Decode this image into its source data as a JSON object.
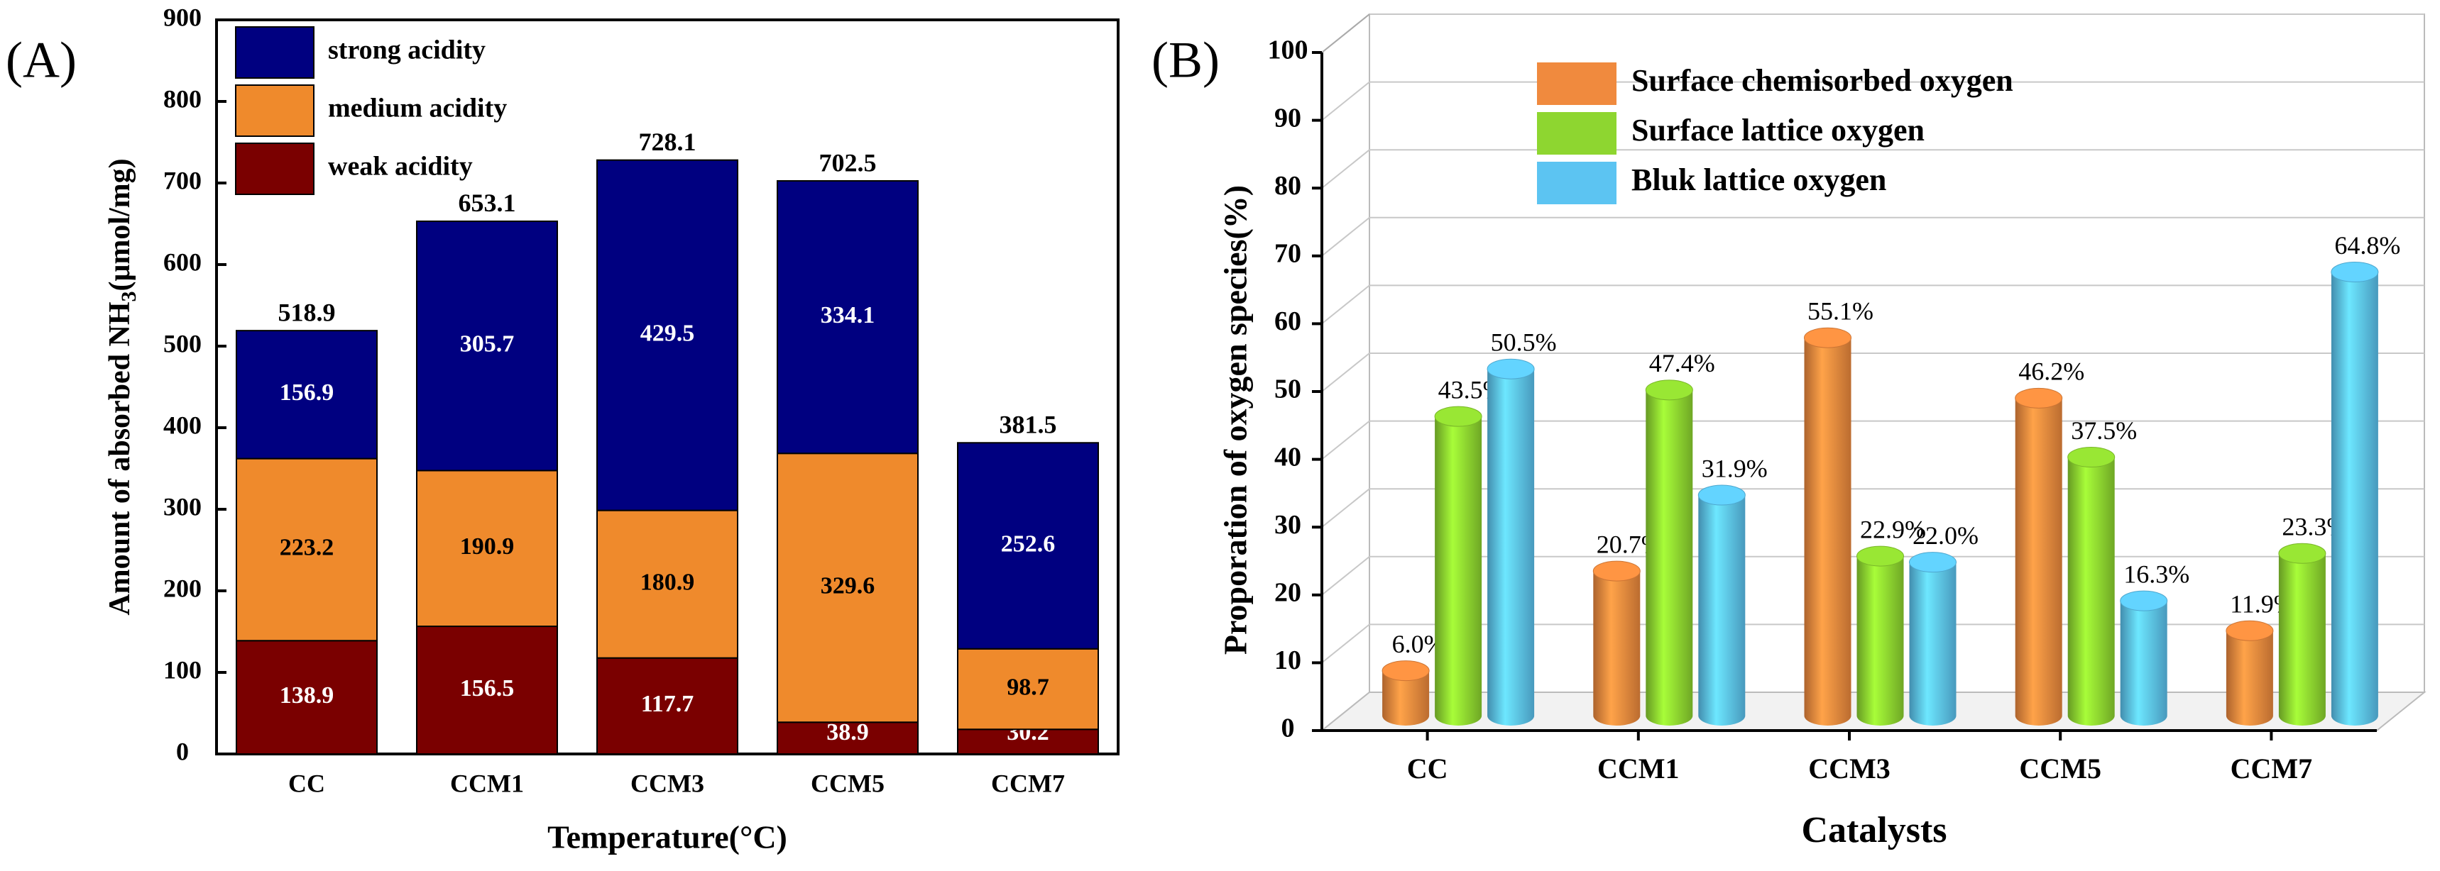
{
  "chart_data": [
    {
      "panel_label": "(A)",
      "type": "bar",
      "stacked": true,
      "categories": [
        "CC",
        "CCM1",
        "CCM3",
        "CCM5",
        "CCM7"
      ],
      "series": [
        {
          "name": "weak acidity",
          "values": [
            138.9,
            156.5,
            117.7,
            38.9,
            30.2
          ],
          "labels": [
            "138.9",
            "156.5",
            "117.7",
            "38.9",
            "30.2"
          ],
          "color": "#7a0000",
          "label_color": "#ffffff"
        },
        {
          "name": "medium acidity",
          "values": [
            223.2,
            190.9,
            180.9,
            329.6,
            98.7
          ],
          "labels": [
            "223.2",
            "190.9",
            "180.9",
            "329.6",
            "98.7"
          ],
          "color": "#ef8a2c",
          "label_color": "#000000"
        },
        {
          "name": "strong acidity",
          "values": [
            156.9,
            305.7,
            429.5,
            334.1,
            252.6
          ],
          "labels": [
            "156.9",
            "305.7",
            "429.5",
            "334.1",
            "252.6"
          ],
          "color": "#000080",
          "label_color": "#ffffff"
        }
      ],
      "totals": [
        518.9,
        653.1,
        728.1,
        702.5,
        381.5
      ],
      "total_labels": [
        "518.9",
        "653.1",
        "728.1",
        "702.5",
        "381.5"
      ],
      "legend": [
        "strong acidity",
        "medium acidity",
        "weak acidity"
      ],
      "legend_position": "top-left",
      "xlabel": "Temperature(°C)",
      "ylabel_parts": [
        "Amount of absorbed NH",
        "3",
        "(μmol/mg)"
      ],
      "ylim": [
        0,
        900
      ],
      "yticks": [
        0,
        100,
        200,
        300,
        400,
        500,
        600,
        700,
        800,
        900
      ],
      "grid": false
    },
    {
      "panel_label": "(B)",
      "type": "bar",
      "style": "3d-cylinder",
      "categories": [
        "CC",
        "CCM1",
        "CCM3",
        "CCM5",
        "CCM7"
      ],
      "series": [
        {
          "name": "Surface chemisorbed oxygen",
          "values": [
            6.0,
            20.7,
            55.1,
            46.2,
            11.9
          ],
          "labels": [
            "6.0%",
            "20.7%",
            "55.1%",
            "46.2%",
            "11.9%"
          ],
          "color": "#f08a3e"
        },
        {
          "name": "Surface lattice oxygen",
          "values": [
            43.5,
            47.4,
            22.9,
            37.5,
            23.3
          ],
          "labels": [
            "43.5%",
            "47.4%",
            "22.9%",
            "37.5%",
            "23.3%"
          ],
          "color": "#8ed630"
        },
        {
          "name": "Bluk lattice oxygen",
          "values": [
            50.5,
            31.9,
            22.0,
            16.3,
            64.8
          ],
          "labels": [
            "50.5%",
            "31.9%",
            "22.0%",
            "16.3%",
            "64.8%"
          ],
          "color": "#5cc4f2"
        }
      ],
      "legend": [
        "Surface chemisorbed oxygen",
        "Surface lattice oxygen",
        "Bluk lattice oxygen"
      ],
      "legend_position": "top-left",
      "xlabel": "Catalysts",
      "ylabel": "Proporation of oxygen species(%)",
      "ylim": [
        0,
        100
      ],
      "yticks": [
        0,
        10,
        20,
        30,
        40,
        50,
        60,
        70,
        80,
        90,
        100
      ],
      "grid": true
    }
  ]
}
